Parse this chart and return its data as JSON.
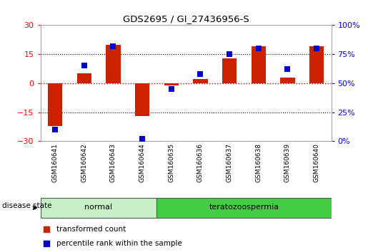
{
  "title": "GDS2695 / GI_27436956-S",
  "samples": [
    "GSM160641",
    "GSM160642",
    "GSM160643",
    "GSM160644",
    "GSM160635",
    "GSM160636",
    "GSM160637",
    "GSM160638",
    "GSM160639",
    "GSM160640"
  ],
  "red_values": [
    -22,
    5,
    20,
    -17,
    -1,
    2,
    13,
    19,
    3,
    19
  ],
  "blue_values": [
    10,
    65,
    82,
    2,
    45,
    58,
    75,
    80,
    62,
    80
  ],
  "ylim_left": [
    -30,
    30
  ],
  "ylim_right": [
    0,
    100
  ],
  "yticks_left": [
    -30,
    -15,
    0,
    15,
    30
  ],
  "yticks_right": [
    0,
    25,
    50,
    75,
    100
  ],
  "ytick_labels_right": [
    "0%",
    "25%",
    "50%",
    "75%",
    "100%"
  ],
  "groups": [
    {
      "label": "normal",
      "start": 0,
      "end": 3,
      "color": "#c8f0c8"
    },
    {
      "label": "teratozoospermia",
      "start": 4,
      "end": 9,
      "color": "#44cc44"
    }
  ],
  "bar_color": "#cc2200",
  "dot_color": "#0000cc",
  "background_color": "#ffffff",
  "red_dashed_color": "#cc0000",
  "legend_red_label": "transformed count",
  "legend_blue_label": "percentile rank within the sample",
  "disease_state_label": "disease state",
  "bar_width": 0.5,
  "dot_size": 35
}
